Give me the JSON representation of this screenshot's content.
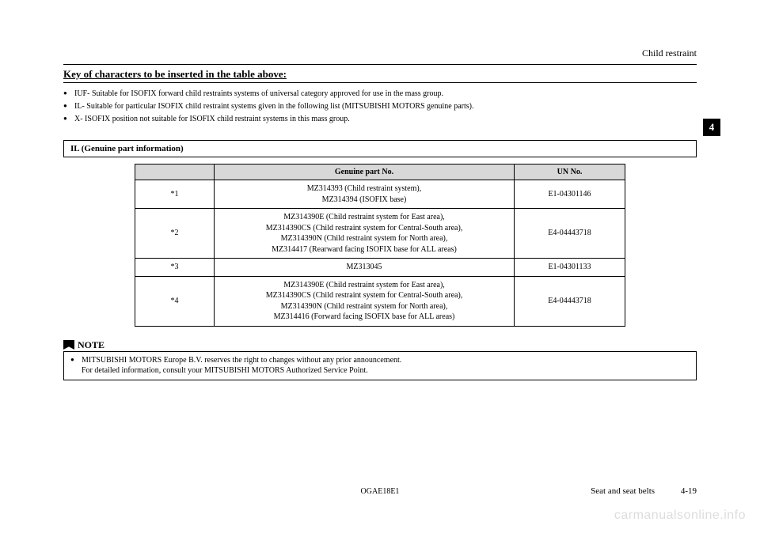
{
  "header": {
    "right": "Child restraint"
  },
  "section_title": "Key of characters to be inserted in the table above:",
  "bullets": [
    "IUF- Suitable for ISOFIX forward child restraints systems of universal category approved for use in the mass group.",
    "IL- Suitable for particular ISOFIX child restraint systems given in the following list (MITSUBISHI MOTORS genuine parts).",
    "X- ISOFIX position not suitable for ISOFIX child restraint systems in this mass group."
  ],
  "il_header": "IL (Genuine part information)",
  "table": {
    "columns": [
      "",
      "Genuine part No.",
      "UN No."
    ],
    "rows": [
      {
        "ref": "*1",
        "part": "MZ314393 (Child restraint system),\nMZ314394 (ISOFIX base)",
        "un": "E1-04301146"
      },
      {
        "ref": "*2",
        "part": "MZ314390E (Child restraint system for East area),\nMZ314390CS (Child restraint system for Central-South area),\nMZ314390N (Child restraint system for North area),\nMZ314417 (Rearward facing ISOFIX base for ALL areas)",
        "un": "E4-04443718"
      },
      {
        "ref": "*3",
        "part": "MZ313045",
        "un": "E1-04301133"
      },
      {
        "ref": "*4",
        "part": "MZ314390E (Child restraint system for East area),\nMZ314390CS (Child restraint system for Central-South area),\nMZ314390N (Child restraint system for North area),\nMZ314416 (Forward facing ISOFIX base for ALL areas)",
        "un": "E4-04443718"
      }
    ]
  },
  "note": {
    "title": "NOTE",
    "items": [
      "MITSUBISHI MOTORS Europe B.V. reserves the right to changes without any prior announcement.\nFor detailed information, consult your MITSUBISHI MOTORS Authorized Service Point."
    ]
  },
  "tab": "4",
  "footer": {
    "center": "OGAE18E1",
    "right_label": "Seat and seat belts",
    "page": "4-19"
  },
  "watermark": "carmanualsonline.info"
}
